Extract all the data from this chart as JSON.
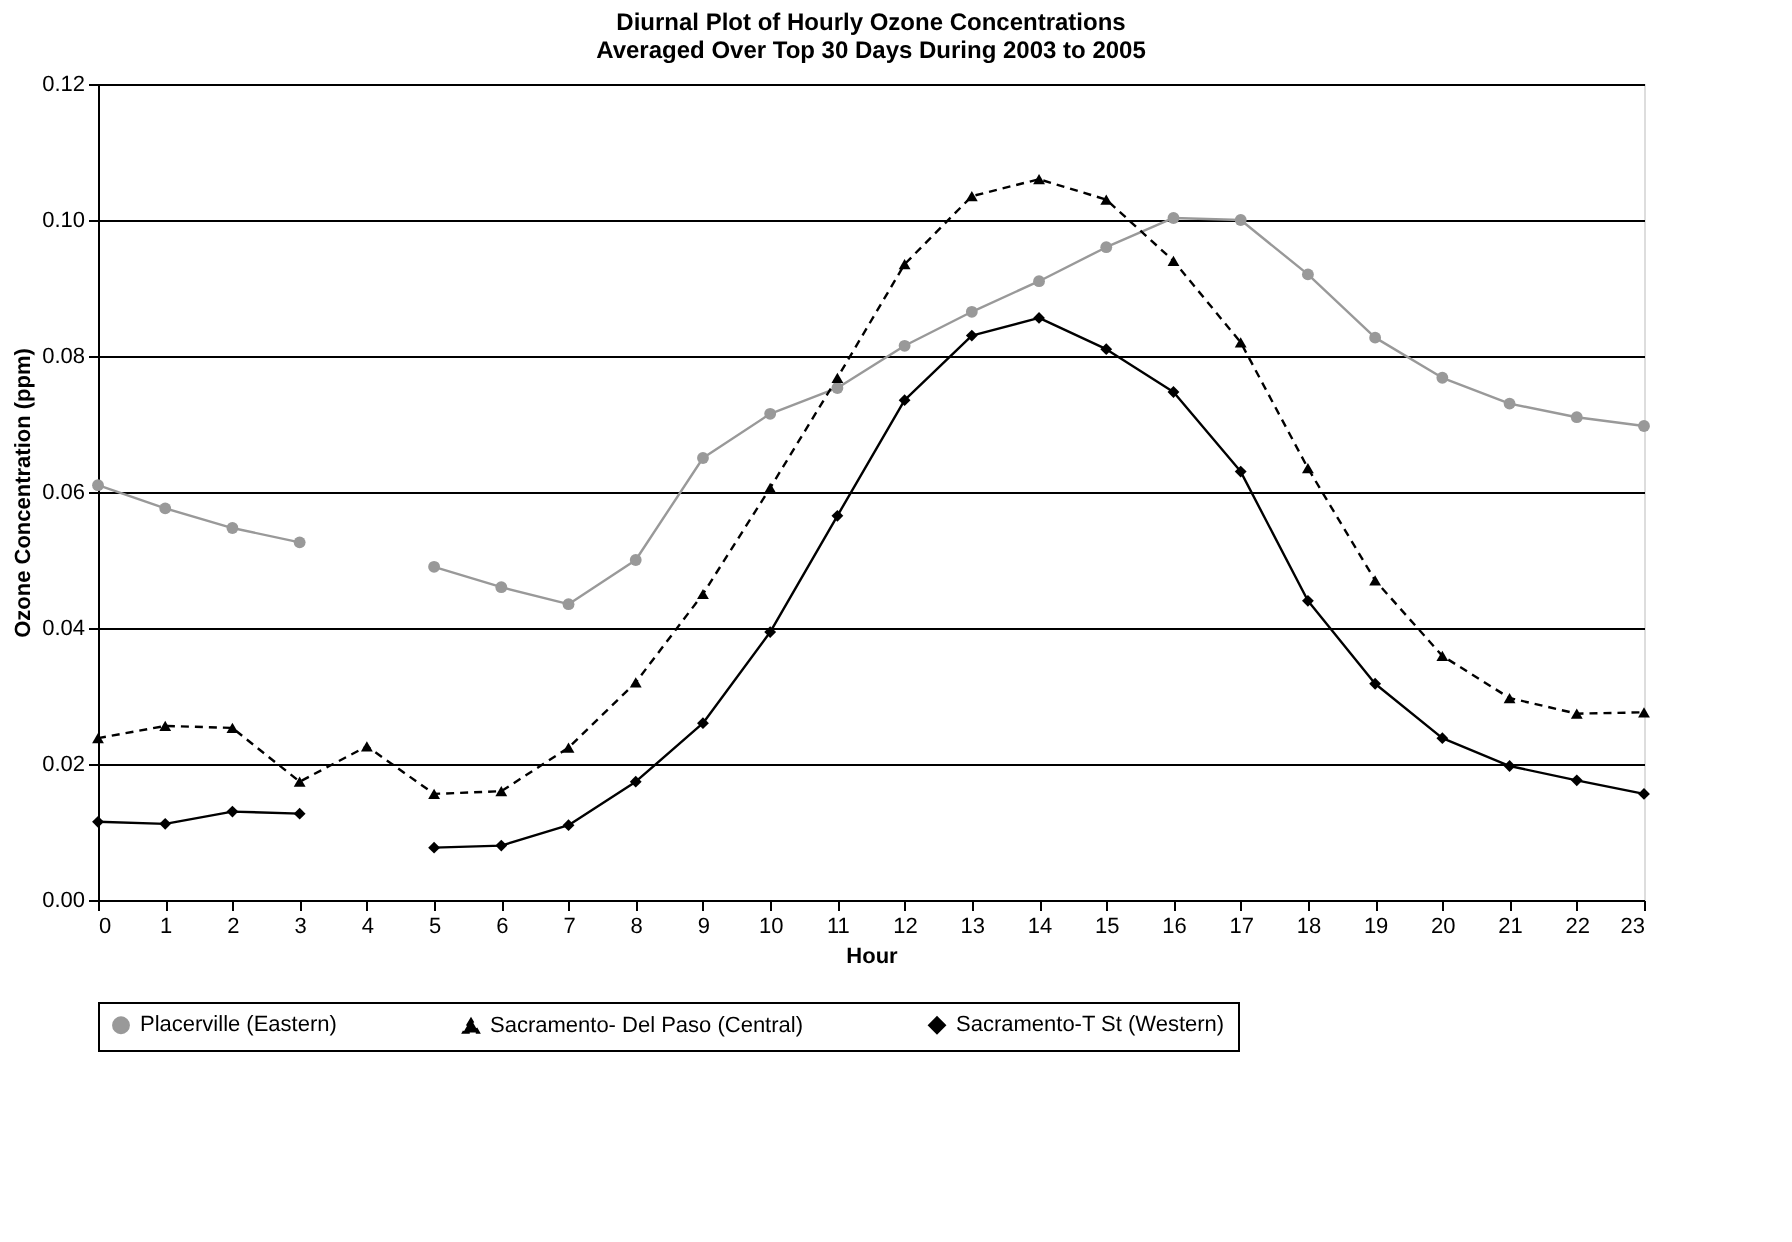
{
  "chart_data": {
    "type": "line",
    "title": "Diurnal Plot of Hourly Ozone Concentrations\nAveraged Over Top 30 Days During 2003 to 2005",
    "xlabel": "Hour",
    "ylabel": "Ozone Concentration (ppm)",
    "x": [
      0,
      1,
      2,
      3,
      4,
      5,
      6,
      7,
      8,
      9,
      10,
      11,
      12,
      13,
      14,
      15,
      16,
      17,
      18,
      19,
      20,
      21,
      22,
      23
    ],
    "series": [
      {
        "name": "Placerville (Eastern)",
        "color": "#999999",
        "marker": "circle",
        "line_style": "solid",
        "values": [
          0.061,
          0.0576,
          0.0547,
          0.0526,
          null,
          0.049,
          0.046,
          0.0435,
          0.05,
          0.065,
          0.0715,
          0.0753,
          0.0815,
          0.0865,
          0.091,
          0.096,
          0.1003,
          0.1,
          0.092,
          0.0827,
          0.0768,
          0.073,
          0.071,
          0.0697
        ]
      },
      {
        "name": "Sacramento- Del Paso (Central)",
        "color": "#000000",
        "marker": "triangle",
        "line_style": "dashed",
        "values": [
          0.0238,
          0.0256,
          0.0253,
          0.0174,
          0.0226,
          0.0156,
          0.016,
          0.0224,
          0.032,
          0.045,
          0.0606,
          0.0768,
          0.0935,
          0.1035,
          0.106,
          0.103,
          0.094,
          0.082,
          0.0635,
          0.047,
          0.0359,
          0.0297,
          0.0274,
          0.0276
        ]
      },
      {
        "name": "Sacramento-T St (Western)",
        "color": "#000000",
        "marker": "diamond",
        "line_style": "solid",
        "values": [
          0.0115,
          0.0112,
          0.013,
          0.0127,
          null,
          0.0077,
          0.008,
          0.011,
          0.0174,
          0.026,
          0.0394,
          0.0565,
          0.0735,
          0.083,
          0.0856,
          0.081,
          0.0747,
          0.063,
          0.044,
          0.0318,
          0.0238,
          0.0197,
          0.0176,
          0.0156
        ]
      }
    ],
    "xlim": [
      0,
      23
    ],
    "xticks": [
      0,
      1,
      2,
      3,
      4,
      5,
      6,
      7,
      8,
      9,
      10,
      11,
      12,
      13,
      14,
      15,
      16,
      17,
      18,
      19,
      20,
      21,
      22,
      23
    ],
    "ylim": [
      0,
      0.12
    ],
    "yticks": [
      {
        "value": 0,
        "label": "0.00"
      },
      {
        "value": 0.02,
        "label": "0.02"
      },
      {
        "value": 0.04,
        "label": "0.04"
      },
      {
        "value": 0.06,
        "label": "0.06"
      },
      {
        "value": 0.08,
        "label": "0.08"
      },
      {
        "value": 0.1,
        "label": "0.10"
      },
      {
        "value": 0.12,
        "label": "0.12"
      }
    ],
    "grid": "y",
    "legend": "bottom"
  }
}
